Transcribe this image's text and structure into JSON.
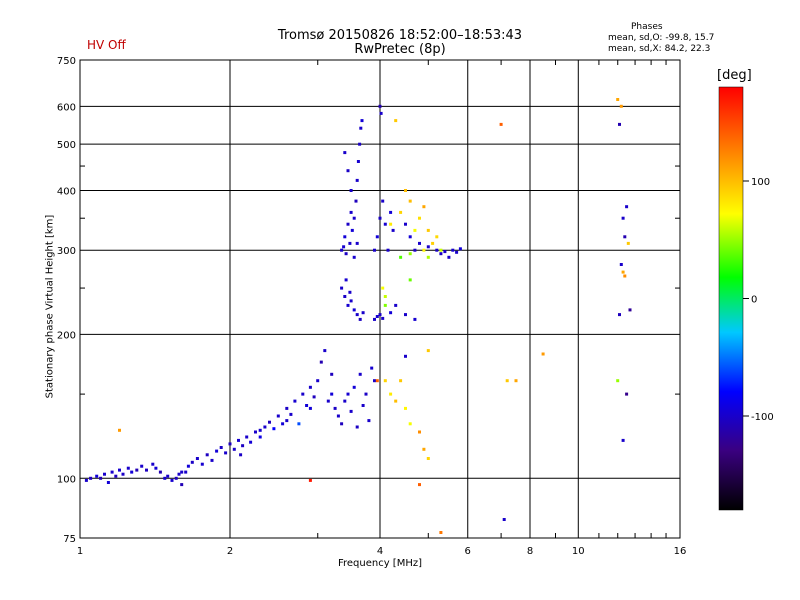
{
  "header": {
    "title_line1": "Tromsø 20150826 18:52:00–18:53:43",
    "title_line2": "RwPretec (8p)",
    "status": "HV Off",
    "status_color": "#c00000",
    "stats_heading": "Phases",
    "stats_line1": "mean, sd,O: -99.8, 15.7",
    "stats_line2": "mean, sd,X:  84.2, 22.3"
  },
  "colorbar": {
    "unit": "[deg]",
    "ticks": [
      {
        "value": 100,
        "label": "100"
      },
      {
        "value": 0,
        "label": "0"
      },
      {
        "value": -100,
        "label": "-100"
      }
    ],
    "range": [
      -180,
      180
    ]
  },
  "chart_data": {
    "type": "scatter",
    "title": "Tromsø 20150826 18:52:00–18:53:43",
    "subtitle": "RwPretec (8p)",
    "xlabel": "Frequency [MHz]",
    "ylabel": "Stationary phase Virtual Height [km]",
    "xscale": "log",
    "yscale": "log",
    "xlim": [
      1,
      16
    ],
    "ylim": [
      75,
      750
    ],
    "grid": true,
    "x_ticks": [
      {
        "value": 1,
        "label": "1"
      },
      {
        "value": 2,
        "label": "2"
      },
      {
        "value": 4,
        "label": "4"
      },
      {
        "value": 6,
        "label": "6"
      },
      {
        "value": 8,
        "label": "8"
      },
      {
        "value": 10,
        "label": "10"
      },
      {
        "value": 16,
        "label": "16"
      }
    ],
    "x_grid": [
      1,
      2,
      4,
      6,
      8,
      10,
      16
    ],
    "y_ticks": [
      {
        "value": 75,
        "label": "75"
      },
      {
        "value": 100,
        "label": "100"
      },
      {
        "value": 200,
        "label": "200"
      },
      {
        "value": 300,
        "label": "300"
      },
      {
        "value": 400,
        "label": "400"
      },
      {
        "value": 500,
        "label": "500"
      },
      {
        "value": 600,
        "label": "600"
      },
      {
        "value": 750,
        "label": "750"
      }
    ],
    "y_grid": [
      100,
      200,
      300,
      400,
      500,
      600
    ],
    "series": [
      {
        "color_by": "phase_deg",
        "points": [
          [
            1.03,
            99,
            -100
          ],
          [
            1.05,
            100,
            -105
          ],
          [
            1.08,
            101,
            -95
          ],
          [
            1.1,
            100,
            -110
          ],
          [
            1.12,
            102,
            -100
          ],
          [
            1.14,
            98,
            -95
          ],
          [
            1.16,
            103,
            -100
          ],
          [
            1.18,
            101,
            -105
          ],
          [
            1.2,
            104,
            -98
          ],
          [
            1.22,
            102,
            -102
          ],
          [
            1.25,
            105,
            -100
          ],
          [
            1.27,
            103,
            -95
          ],
          [
            1.3,
            104,
            -108
          ],
          [
            1.33,
            106,
            -100
          ],
          [
            1.36,
            104,
            -104
          ],
          [
            1.4,
            107,
            -100
          ],
          [
            1.42,
            105,
            -96
          ],
          [
            1.45,
            103,
            -110
          ],
          [
            1.48,
            100,
            -100
          ],
          [
            1.5,
            101,
            -102
          ],
          [
            1.53,
            99,
            -98
          ],
          [
            1.56,
            100,
            -105
          ],
          [
            1.58,
            102,
            -100
          ],
          [
            1.6,
            97,
            -108
          ],
          [
            1.63,
            103,
            -100
          ],
          [
            1.65,
            106,
            -95
          ],
          [
            1.68,
            108,
            -102
          ],
          [
            1.72,
            110,
            -100
          ],
          [
            1.76,
            107,
            -98
          ],
          [
            1.8,
            112,
            -104
          ],
          [
            1.84,
            109,
            -100
          ],
          [
            1.88,
            114,
            -95
          ],
          [
            1.92,
            116,
            -102
          ],
          [
            1.96,
            113,
            -100
          ],
          [
            2.0,
            118,
            -105
          ],
          [
            2.04,
            115,
            -100
          ],
          [
            2.08,
            120,
            -98
          ],
          [
            2.12,
            117,
            -103
          ],
          [
            2.16,
            122,
            -100
          ],
          [
            2.2,
            119,
            -96
          ],
          [
            2.25,
            125,
            -100
          ],
          [
            2.3,
            122,
            -90
          ],
          [
            2.35,
            128,
            -100
          ],
          [
            2.4,
            131,
            -105
          ],
          [
            2.45,
            127,
            -80
          ],
          [
            2.5,
            135,
            -100
          ],
          [
            2.55,
            130,
            -95
          ],
          [
            2.6,
            140,
            -102
          ],
          [
            2.65,
            136,
            -100
          ],
          [
            2.7,
            145,
            -98
          ],
          [
            2.75,
            130,
            -60
          ],
          [
            2.8,
            150,
            -100
          ],
          [
            2.85,
            142,
            -95
          ],
          [
            2.9,
            155,
            -100
          ],
          [
            2.95,
            148,
            -105
          ],
          [
            3.0,
            160,
            -100
          ],
          [
            3.05,
            175,
            -110
          ],
          [
            3.1,
            185,
            -100
          ],
          [
            3.15,
            145,
            -100
          ],
          [
            3.2,
            150,
            -95
          ],
          [
            3.25,
            140,
            -102
          ],
          [
            3.3,
            135,
            -100
          ],
          [
            3.35,
            130,
            -105
          ],
          [
            3.4,
            145,
            -100
          ],
          [
            3.45,
            150,
            -98
          ],
          [
            3.5,
            138,
            -100
          ],
          [
            3.55,
            155,
            -95
          ],
          [
            3.6,
            128,
            -103
          ],
          [
            3.65,
            165,
            -100
          ],
          [
            3.7,
            142,
            -100
          ],
          [
            3.75,
            150,
            -102
          ],
          [
            3.8,
            132,
            -100
          ],
          [
            3.85,
            170,
            -98
          ],
          [
            3.9,
            160,
            -100
          ],
          [
            1.6,
            103,
            -100
          ],
          [
            2.1,
            112,
            -102
          ],
          [
            2.3,
            126,
            -98
          ],
          [
            2.6,
            132,
            -100
          ],
          [
            2.9,
            140,
            -95
          ],
          [
            3.2,
            165,
            -105
          ],
          [
            3.35,
            300,
            -100
          ],
          [
            3.4,
            320,
            -95
          ],
          [
            3.45,
            340,
            -102
          ],
          [
            3.5,
            360,
            -100
          ],
          [
            3.38,
            305,
            -98
          ],
          [
            3.42,
            295,
            -103
          ],
          [
            3.48,
            310,
            -100
          ],
          [
            3.52,
            330,
            -95
          ],
          [
            3.55,
            350,
            -100
          ],
          [
            3.58,
            380,
            -105
          ],
          [
            3.6,
            420,
            -100
          ],
          [
            3.62,
            460,
            -98
          ],
          [
            3.64,
            500,
            -102
          ],
          [
            3.66,
            540,
            -100
          ],
          [
            3.68,
            560,
            -95
          ],
          [
            3.4,
            480,
            -100
          ],
          [
            3.45,
            440,
            -102
          ],
          [
            3.5,
            400,
            -100
          ],
          [
            3.55,
            290,
            -98
          ],
          [
            3.6,
            310,
            -100
          ],
          [
            3.35,
            250,
            -100
          ],
          [
            3.4,
            240,
            -102
          ],
          [
            3.45,
            230,
            -98
          ],
          [
            3.5,
            235,
            -100
          ],
          [
            3.55,
            225,
            -95
          ],
          [
            3.6,
            220,
            -100
          ],
          [
            3.65,
            215,
            -103
          ],
          [
            3.7,
            222,
            -100
          ],
          [
            3.42,
            260,
            -98
          ],
          [
            3.48,
            245,
            -100
          ],
          [
            3.9,
            300,
            -100
          ],
          [
            3.95,
            320,
            -95
          ],
          [
            4.0,
            350,
            -102
          ],
          [
            4.05,
            380,
            -100
          ],
          [
            4.1,
            340,
            -98
          ],
          [
            4.15,
            300,
            -100
          ],
          [
            4.2,
            360,
            -95
          ],
          [
            4.25,
            330,
            -100
          ],
          [
            4.0,
            600,
            -110
          ],
          [
            4.02,
            580,
            -100
          ],
          [
            3.9,
            215,
            -100
          ],
          [
            3.95,
            218,
            -98
          ],
          [
            4.0,
            220,
            -102
          ],
          [
            4.05,
            216,
            -100
          ],
          [
            4.2,
            222,
            -95
          ],
          [
            4.3,
            230,
            -100
          ],
          [
            4.5,
            340,
            -100
          ],
          [
            4.6,
            320,
            -95
          ],
          [
            4.7,
            300,
            -102
          ],
          [
            4.8,
            310,
            -100
          ],
          [
            4.5,
            220,
            -100
          ],
          [
            4.7,
            215,
            -98
          ],
          [
            5.0,
            305,
            -100
          ],
          [
            5.2,
            300,
            -102
          ],
          [
            5.4,
            298,
            -100
          ],
          [
            5.6,
            300,
            -98
          ],
          [
            5.7,
            297,
            -100
          ],
          [
            5.8,
            302,
            -95
          ],
          [
            5.5,
            290,
            -100
          ],
          [
            5.3,
            295,
            -103
          ],
          [
            4.2,
            340,
            80
          ],
          [
            4.4,
            360,
            90
          ],
          [
            4.6,
            380,
            100
          ],
          [
            4.8,
            350,
            85
          ],
          [
            5.0,
            330,
            95
          ],
          [
            5.2,
            320,
            88
          ],
          [
            4.9,
            300,
            75
          ],
          [
            5.1,
            310,
            92
          ],
          [
            4.7,
            330,
            70
          ],
          [
            4.5,
            400,
            100
          ],
          [
            4.3,
            560,
            95
          ],
          [
            4.05,
            250,
            70
          ],
          [
            4.1,
            240,
            60
          ],
          [
            4.6,
            295,
            50
          ],
          [
            5.0,
            290,
            55
          ],
          [
            4.9,
            370,
            110
          ],
          [
            5.3,
            300,
            60
          ],
          [
            4.4,
            290,
            35
          ],
          [
            4.6,
            260,
            40
          ],
          [
            4.1,
            230,
            45
          ],
          [
            4.1,
            160,
            90
          ],
          [
            4.2,
            150,
            80
          ],
          [
            4.3,
            145,
            100
          ],
          [
            4.5,
            140,
            75
          ],
          [
            4.6,
            130,
            70
          ],
          [
            4.8,
            125,
            120
          ],
          [
            4.4,
            160,
            95
          ],
          [
            4.9,
            115,
            110
          ],
          [
            5.0,
            110,
            90
          ],
          [
            4.8,
            97,
            140
          ],
          [
            5.3,
            77,
            130
          ],
          [
            1.2,
            126,
            115
          ],
          [
            2.9,
            99,
            170
          ],
          [
            3.95,
            160,
            140
          ],
          [
            4.5,
            180,
            -100
          ],
          [
            5.0,
            185,
            95
          ],
          [
            7.0,
            550,
            140
          ],
          [
            7.2,
            160,
            95
          ],
          [
            7.5,
            160,
            110
          ],
          [
            8.5,
            182,
            115
          ],
          [
            7.1,
            82,
            -100
          ],
          [
            12.0,
            620,
            110
          ],
          [
            12.2,
            600,
            115
          ],
          [
            12.1,
            550,
            -110
          ],
          [
            12.5,
            370,
            -100
          ],
          [
            12.3,
            350,
            -100
          ],
          [
            12.4,
            320,
            -110
          ],
          [
            12.6,
            310,
            95
          ],
          [
            12.2,
            280,
            -100
          ],
          [
            12.3,
            270,
            110
          ],
          [
            12.4,
            265,
            120
          ],
          [
            12.1,
            220,
            -105
          ],
          [
            12.7,
            225,
            -120
          ],
          [
            12.0,
            160,
            50
          ],
          [
            12.5,
            150,
            -125
          ],
          [
            12.3,
            120,
            -100
          ]
        ]
      }
    ]
  }
}
